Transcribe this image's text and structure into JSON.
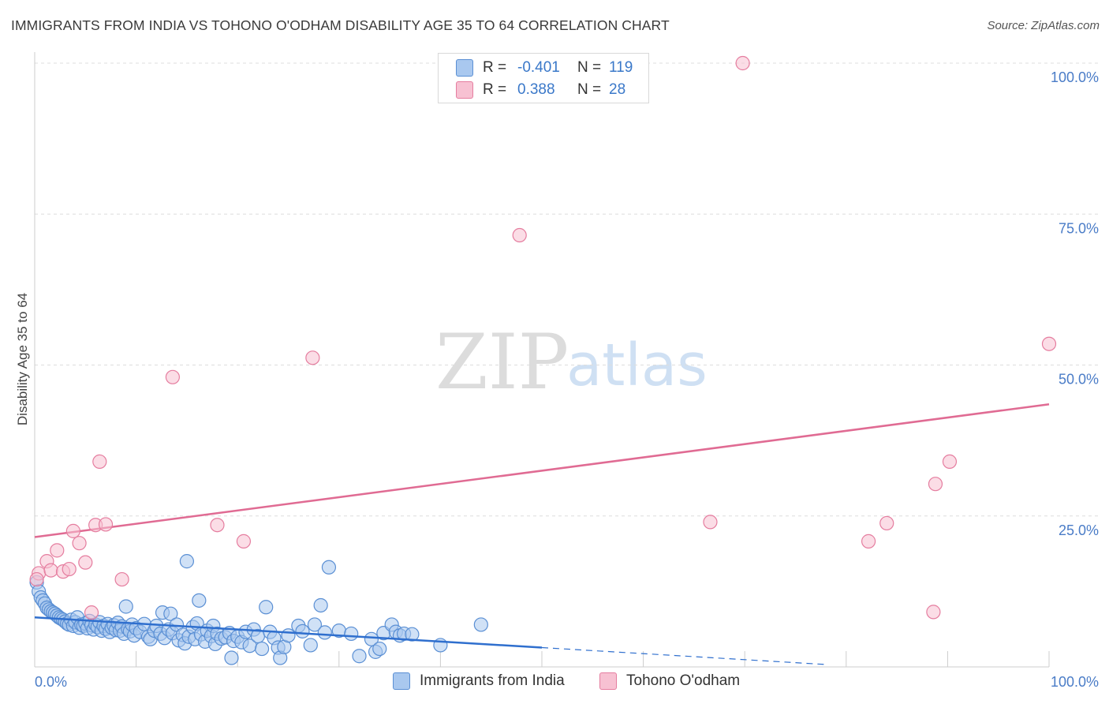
{
  "title": "IMMIGRANTS FROM INDIA VS TOHONO O'ODHAM DISABILITY AGE 35 TO 64 CORRELATION CHART",
  "source": "Source: ZipAtlas.com",
  "watermark": {
    "zip": "ZIP",
    "atlas": "atlas"
  },
  "colors": {
    "india_fill": "#a9c8ef",
    "india_stroke": "#5a8fd4",
    "india_line": "#2f6fce",
    "tohono_fill": "#f7c1d2",
    "tohono_stroke": "#e57d9f",
    "tohono_line": "#e06b93",
    "grid": "#dddddd",
    "tick_text": "#4a7cc7"
  },
  "legend": {
    "rows": [
      {
        "r_label": "R =",
        "r_value": "-0.401",
        "n_label": "N =",
        "n_value": "119"
      },
      {
        "r_label": "R =",
        "r_value": "0.388",
        "n_label": "N =",
        "n_value": "28"
      }
    ]
  },
  "chart_data": {
    "type": "scatter",
    "title": "IMMIGRANTS FROM INDIA VS TOHONO O'ODHAM DISABILITY AGE 35 TO 64 CORRELATION CHART",
    "xlabel": "",
    "ylabel": "Disability Age 35 to 64",
    "xlim": [
      0,
      100
    ],
    "ylim": [
      0,
      100
    ],
    "x_tick_labels": [
      "0.0%",
      "100.0%"
    ],
    "y_tick_labels": [
      "100.0%",
      "75.0%",
      "50.0%",
      "25.0%"
    ],
    "y_ticks": [
      100,
      75,
      50,
      25
    ],
    "grid": true,
    "series": [
      {
        "name": "Immigrants from India",
        "r": -0.401,
        "n": 119,
        "trend": {
          "x": [
            0,
            50
          ],
          "y": [
            8.2,
            3.2
          ],
          "dash_to_x": 78
        },
        "points": [
          [
            0.2,
            14.0
          ],
          [
            0.4,
            12.5
          ],
          [
            0.6,
            11.5
          ],
          [
            0.8,
            11.0
          ],
          [
            1.0,
            10.5
          ],
          [
            1.2,
            9.8
          ],
          [
            1.4,
            9.5
          ],
          [
            1.6,
            9.2
          ],
          [
            1.8,
            9.0
          ],
          [
            2.0,
            8.8
          ],
          [
            2.2,
            8.5
          ],
          [
            2.4,
            8.2
          ],
          [
            2.6,
            8.0
          ],
          [
            2.8,
            7.8
          ],
          [
            3.0,
            7.5
          ],
          [
            3.2,
            7.2
          ],
          [
            3.4,
            7.0
          ],
          [
            3.6,
            7.8
          ],
          [
            3.8,
            6.8
          ],
          [
            4.0,
            7.4
          ],
          [
            4.2,
            8.2
          ],
          [
            4.4,
            6.5
          ],
          [
            4.6,
            7.0
          ],
          [
            4.8,
            6.8
          ],
          [
            5.0,
            7.2
          ],
          [
            5.2,
            6.4
          ],
          [
            5.4,
            7.6
          ],
          [
            5.6,
            6.9
          ],
          [
            5.8,
            6.2
          ],
          [
            6.0,
            7.0
          ],
          [
            6.2,
            6.6
          ],
          [
            6.4,
            7.4
          ],
          [
            6.6,
            6.0
          ],
          [
            6.8,
            6.8
          ],
          [
            7.0,
            6.3
          ],
          [
            7.2,
            7.1
          ],
          [
            7.4,
            5.8
          ],
          [
            7.6,
            6.5
          ],
          [
            7.8,
            6.9
          ],
          [
            8.0,
            6.1
          ],
          [
            8.2,
            7.3
          ],
          [
            8.4,
            6.0
          ],
          [
            8.6,
            6.7
          ],
          [
            8.8,
            5.5
          ],
          [
            9.0,
            10.0
          ],
          [
            9.2,
            6.3
          ],
          [
            9.4,
            5.9
          ],
          [
            9.6,
            7.0
          ],
          [
            9.8,
            5.2
          ],
          [
            10.0,
            6.4
          ],
          [
            10.4,
            5.8
          ],
          [
            10.8,
            7.1
          ],
          [
            11.2,
            5.0
          ],
          [
            11.4,
            4.6
          ],
          [
            11.8,
            6.0
          ],
          [
            12.0,
            6.8
          ],
          [
            12.4,
            5.5
          ],
          [
            12.6,
            9.0
          ],
          [
            12.8,
            4.8
          ],
          [
            13.2,
            6.2
          ],
          [
            13.4,
            8.8
          ],
          [
            13.6,
            5.6
          ],
          [
            14.0,
            7.0
          ],
          [
            14.2,
            4.4
          ],
          [
            14.6,
            5.3
          ],
          [
            14.8,
            3.9
          ],
          [
            15.0,
            17.5
          ],
          [
            15.2,
            5.0
          ],
          [
            15.6,
            6.6
          ],
          [
            15.8,
            4.6
          ],
          [
            16.0,
            7.2
          ],
          [
            16.2,
            11.0
          ],
          [
            16.4,
            5.4
          ],
          [
            16.8,
            4.2
          ],
          [
            17.0,
            6.0
          ],
          [
            17.4,
            5.1
          ],
          [
            17.6,
            6.8
          ],
          [
            17.8,
            3.8
          ],
          [
            18.0,
            5.5
          ],
          [
            18.4,
            4.7
          ],
          [
            18.8,
            4.9
          ],
          [
            19.2,
            5.6
          ],
          [
            19.4,
            1.5
          ],
          [
            19.6,
            4.3
          ],
          [
            20.0,
            5.0
          ],
          [
            20.4,
            4.1
          ],
          [
            20.8,
            5.8
          ],
          [
            21.2,
            3.5
          ],
          [
            21.6,
            6.2
          ],
          [
            22.0,
            5.1
          ],
          [
            22.4,
            3.0
          ],
          [
            22.8,
            9.9
          ],
          [
            23.2,
            5.8
          ],
          [
            23.6,
            4.8
          ],
          [
            24.0,
            3.2
          ],
          [
            24.2,
            1.5
          ],
          [
            24.6,
            3.3
          ],
          [
            25.0,
            5.2
          ],
          [
            26.0,
            6.8
          ],
          [
            26.4,
            5.9
          ],
          [
            27.2,
            3.6
          ],
          [
            27.6,
            7.0
          ],
          [
            28.2,
            10.2
          ],
          [
            28.6,
            5.7
          ],
          [
            29.0,
            16.5
          ],
          [
            30.0,
            6.0
          ],
          [
            31.2,
            5.5
          ],
          [
            32.0,
            1.8
          ],
          [
            33.2,
            4.6
          ],
          [
            33.6,
            2.5
          ],
          [
            34.0,
            3.0
          ],
          [
            34.4,
            5.6
          ],
          [
            35.2,
            7.0
          ],
          [
            35.6,
            5.8
          ],
          [
            36.0,
            5.2
          ],
          [
            36.4,
            5.5
          ],
          [
            37.2,
            5.4
          ],
          [
            40.0,
            3.6
          ],
          [
            44.0,
            7.0
          ]
        ]
      },
      {
        "name": "Tohono O'odham",
        "r": 0.388,
        "n": 28,
        "trend": {
          "x": [
            0,
            100
          ],
          "y": [
            21.5,
            43.5
          ]
        },
        "points": [
          [
            0.4,
            15.5
          ],
          [
            1.2,
            17.5
          ],
          [
            1.6,
            16.0
          ],
          [
            2.2,
            19.3
          ],
          [
            2.8,
            15.8
          ],
          [
            3.4,
            16.2
          ],
          [
            3.8,
            22.5
          ],
          [
            4.4,
            20.5
          ],
          [
            5.0,
            17.3
          ],
          [
            5.6,
            9.0
          ],
          [
            6.0,
            23.5
          ],
          [
            6.4,
            34.0
          ],
          [
            7.0,
            23.6
          ],
          [
            8.6,
            14.5
          ],
          [
            13.6,
            48.0
          ],
          [
            18.0,
            23.5
          ],
          [
            20.6,
            20.8
          ],
          [
            27.4,
            51.2
          ],
          [
            47.8,
            71.5
          ],
          [
            66.6,
            24.0
          ],
          [
            69.8,
            100.0
          ],
          [
            82.2,
            20.8
          ],
          [
            84.0,
            23.8
          ],
          [
            88.6,
            9.1
          ],
          [
            88.8,
            30.3
          ],
          [
            90.2,
            34.0
          ],
          [
            100.0,
            53.5
          ],
          [
            0.2,
            14.5
          ]
        ]
      }
    ]
  },
  "bottom_legend": {
    "india_label": "Immigrants from India",
    "tohono_label": "Tohono O'odham"
  }
}
